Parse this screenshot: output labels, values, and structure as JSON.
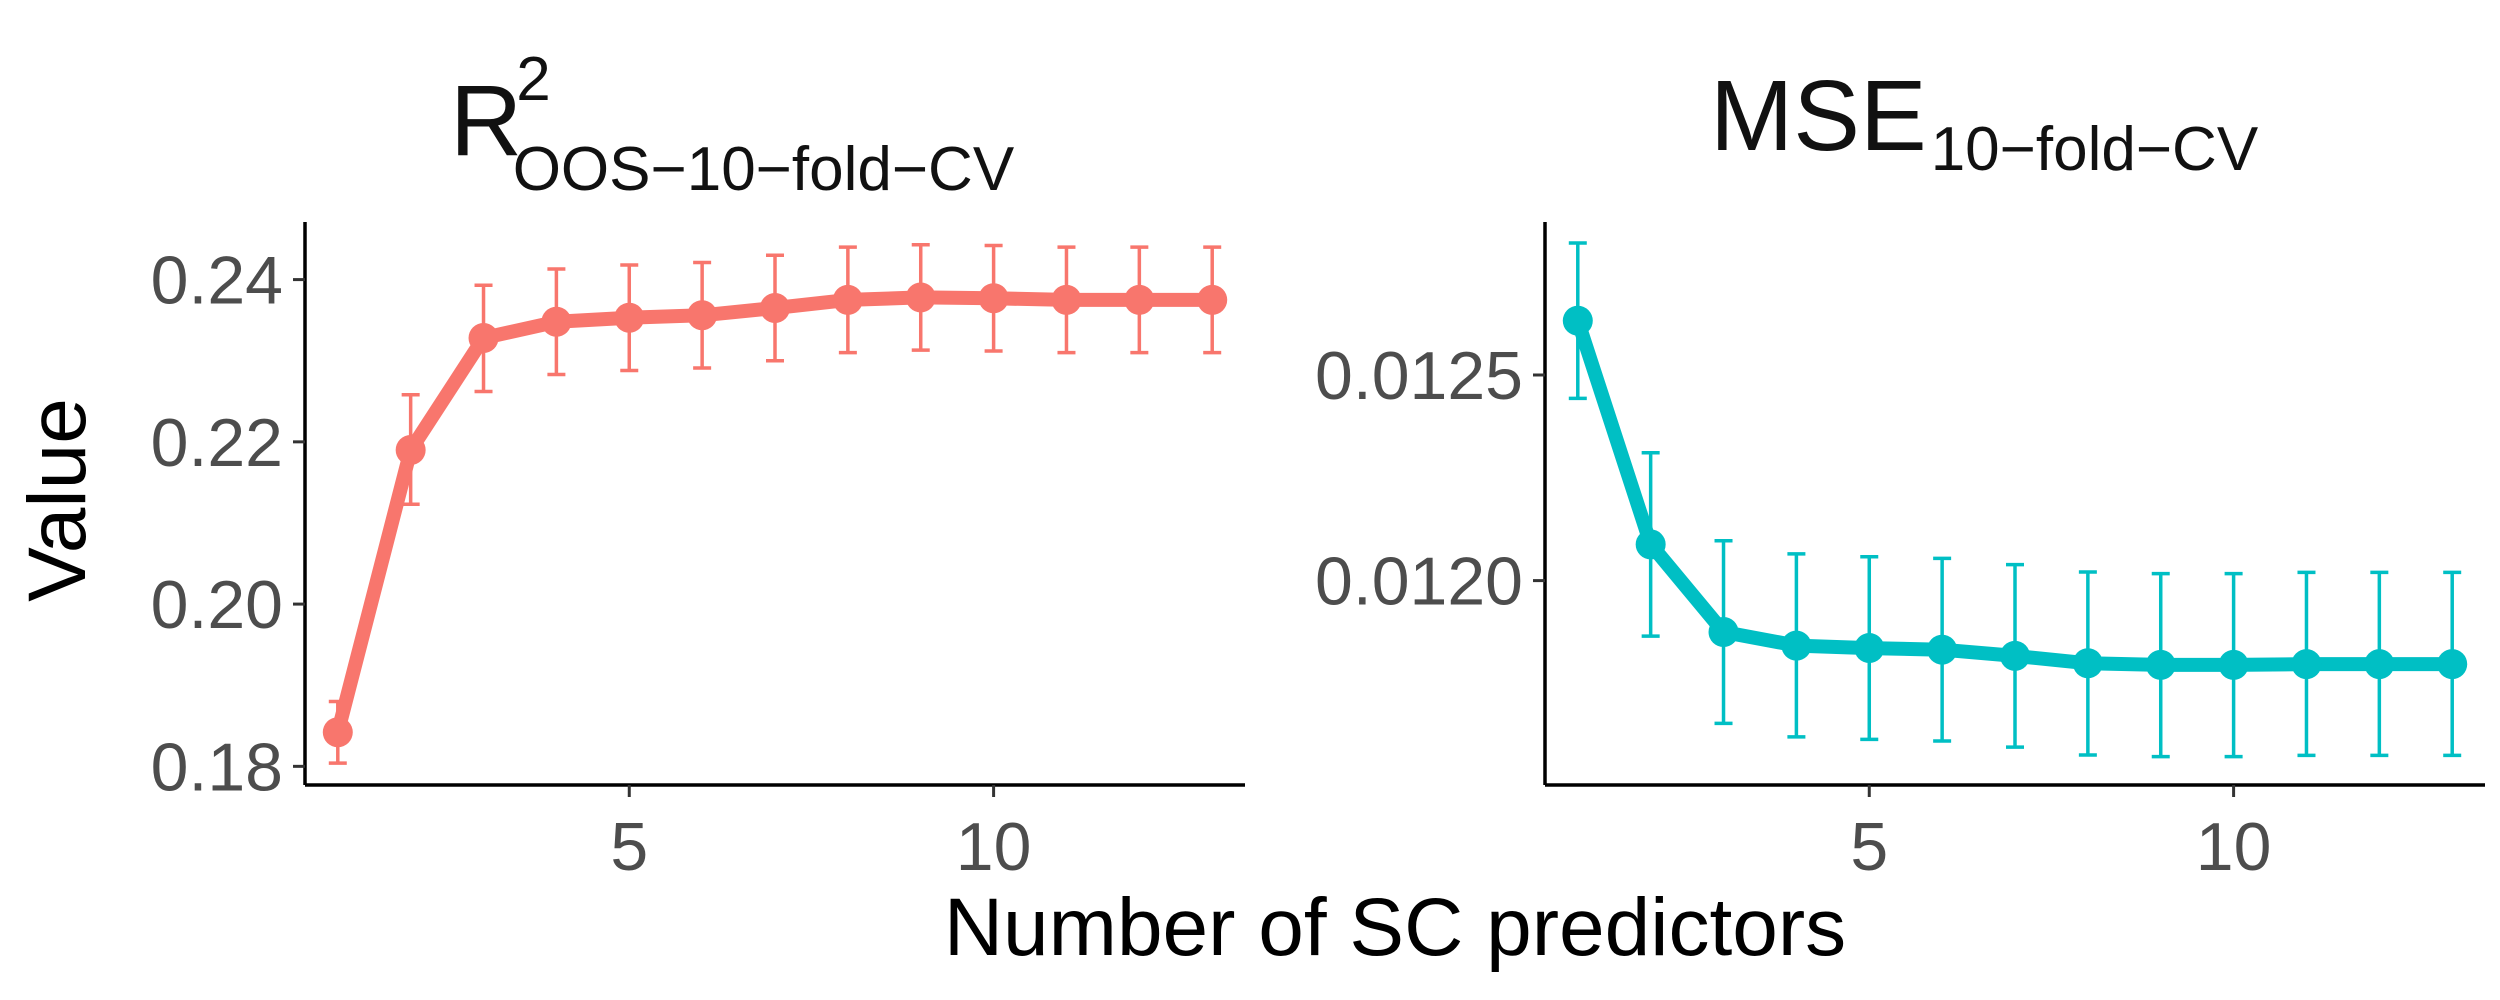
{
  "chart_data": {
    "type": "line",
    "shared_xlabel": "Number of SC predictors",
    "shared_ylabel": "Value",
    "panels": [
      {
        "title_main": "R",
        "title_sup": "2",
        "title_sub": "OOS−10−fold−CV",
        "color": "#F8766D",
        "x": [
          1,
          2,
          3,
          4,
          5,
          6,
          7,
          8,
          9,
          10,
          11,
          12,
          13
        ],
        "y": [
          0.1842,
          0.219,
          0.2328,
          0.2348,
          0.2353,
          0.2356,
          0.2365,
          0.2375,
          0.2378,
          0.2377,
          0.2375,
          0.2375,
          0.2375
        ],
        "err_low": [
          0.1804,
          0.2123,
          0.2262,
          0.2283,
          0.2288,
          0.2291,
          0.23,
          0.231,
          0.2313,
          0.2312,
          0.231,
          0.231,
          0.231
        ],
        "err_high": [
          0.188,
          0.2258,
          0.2393,
          0.2413,
          0.2418,
          0.2421,
          0.243,
          0.244,
          0.2443,
          0.2442,
          0.244,
          0.244,
          0.244
        ],
        "xticks": [
          5,
          10
        ],
        "yticks": [
          0.18,
          0.2,
          0.22,
          0.24
        ],
        "ytick_labels": [
          "0.18",
          "0.20",
          "0.22",
          "0.24"
        ],
        "xlim": [
          0.55,
          13.45
        ],
        "ylim": [
          0.1777,
          0.2471
        ]
      },
      {
        "title_main": "MSE",
        "title_sup": "",
        "title_sub": "10−fold−CV",
        "color": "#00BFC4",
        "x": [
          1,
          2,
          3,
          4,
          5,
          6,
          7,
          8,
          9,
          10,
          11,
          12,
          13
        ],
        "y": [
          0.012632,
          0.012088,
          0.011875,
          0.011842,
          0.011836,
          0.011832,
          0.011817,
          0.011799,
          0.011795,
          0.011795,
          0.011797,
          0.011797,
          0.011797
        ],
        "err_low": [
          0.012443,
          0.011865,
          0.011653,
          0.01162,
          0.011614,
          0.01161,
          0.011595,
          0.011576,
          0.011572,
          0.011572,
          0.011575,
          0.011575,
          0.011575
        ],
        "err_high": [
          0.012821,
          0.012311,
          0.012097,
          0.012065,
          0.012058,
          0.012054,
          0.012039,
          0.012021,
          0.012017,
          0.012017,
          0.01202,
          0.01202,
          0.01202
        ],
        "xticks": [
          5,
          10
        ],
        "yticks": [
          0.012,
          0.0125
        ],
        "ytick_labels": [
          "0.0120",
          "0.0125"
        ],
        "xlim": [
          0.55,
          13.45
        ],
        "ylim": [
          0.011503,
          0.012872
        ]
      }
    ]
  }
}
